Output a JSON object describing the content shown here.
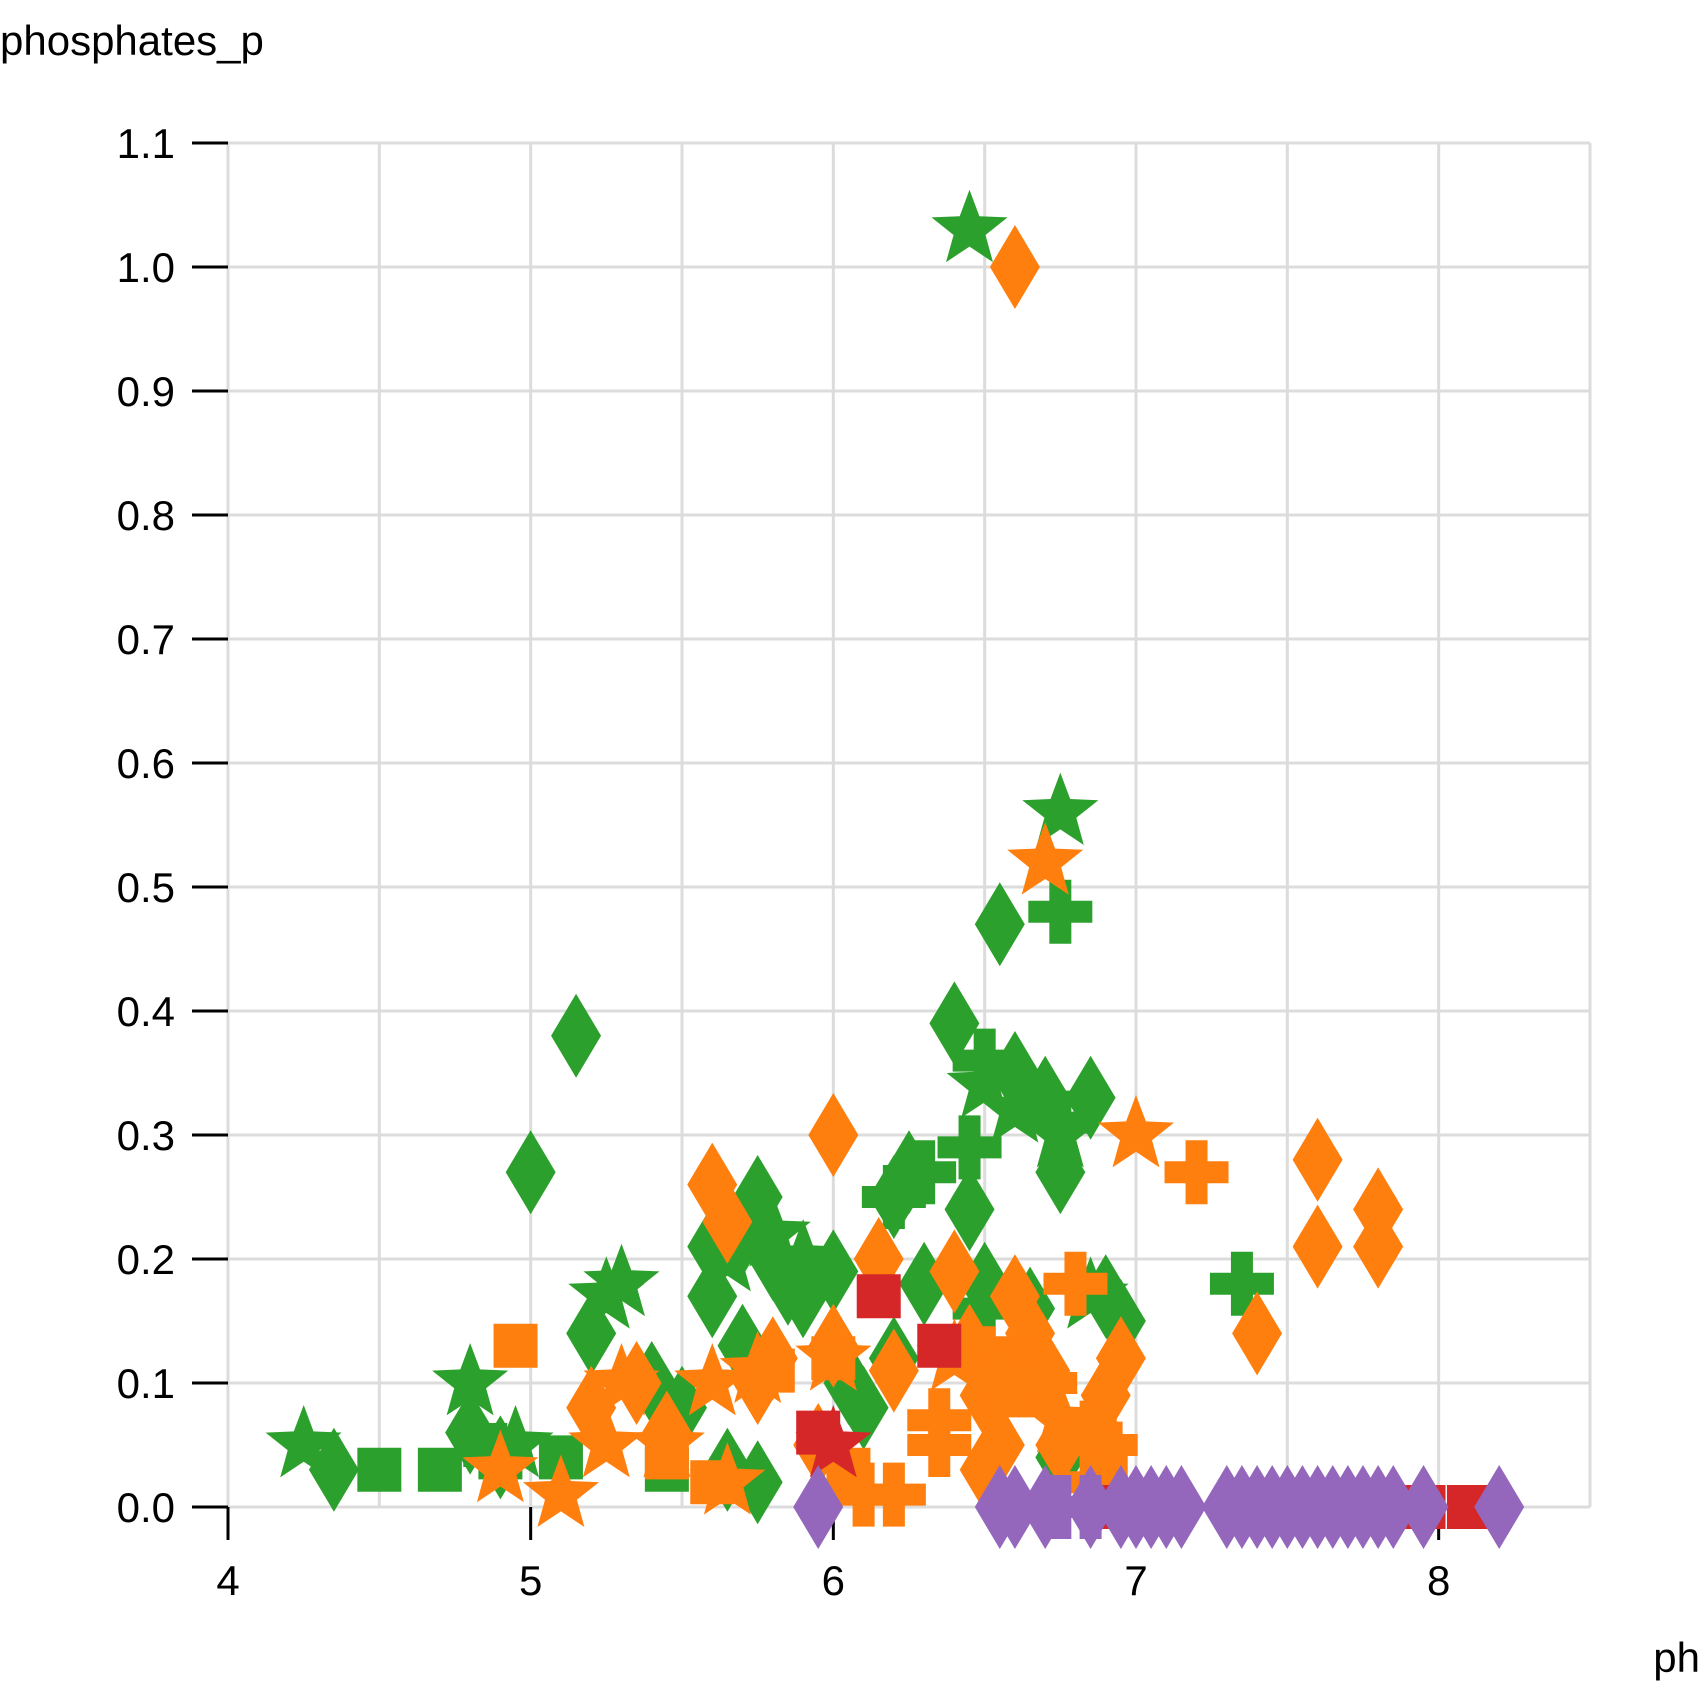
{
  "chart_data": {
    "type": "scatter",
    "xlabel": "ph",
    "ylabel": "phosphates_p",
    "xlim": [
      4,
      8.5
    ],
    "ylim": [
      0,
      1.1
    ],
    "x_ticks": [
      "4",
      "5",
      "6",
      "7",
      "8"
    ],
    "y_ticks": [
      "0.0",
      "0.1",
      "0.2",
      "0.3",
      "0.4",
      "0.5",
      "0.6",
      "0.7",
      "0.8",
      "0.9",
      "1.0",
      "1.1"
    ],
    "grid": true,
    "colors": {
      "green": "#2ca02c",
      "orange": "#ff7f0e",
      "red": "#d62728",
      "purple": "#9467bd"
    },
    "series": [
      {
        "color": "green",
        "marker": "star",
        "points": [
          [
            6.45,
            1.03
          ],
          [
            6.75,
            0.56
          ],
          [
            4.25,
            0.05
          ],
          [
            4.8,
            0.1
          ],
          [
            5.25,
            0.17
          ],
          [
            5.3,
            0.18
          ],
          [
            5.65,
            0.2
          ],
          [
            5.9,
            0.2
          ],
          [
            6.5,
            0.34
          ],
          [
            6.6,
            0.32
          ],
          [
            6.75,
            0.3
          ],
          [
            6.85,
            0.17
          ],
          [
            4.95,
            0.05
          ],
          [
            5.8,
            0.22
          ]
        ]
      },
      {
        "color": "green",
        "marker": "diamond",
        "points": [
          [
            5.15,
            0.38
          ],
          [
            5.0,
            0.27
          ],
          [
            4.35,
            0.03
          ],
          [
            4.8,
            0.06
          ],
          [
            4.9,
            0.04
          ],
          [
            5.2,
            0.14
          ],
          [
            5.4,
            0.1
          ],
          [
            5.5,
            0.08
          ],
          [
            5.6,
            0.21
          ],
          [
            5.7,
            0.22
          ],
          [
            5.75,
            0.25
          ],
          [
            5.8,
            0.2
          ],
          [
            5.85,
            0.18
          ],
          [
            5.9,
            0.17
          ],
          [
            6.0,
            0.19
          ],
          [
            6.05,
            0.1
          ],
          [
            6.1,
            0.08
          ],
          [
            6.2,
            0.12
          ],
          [
            6.2,
            0.25
          ],
          [
            6.25,
            0.27
          ],
          [
            6.3,
            0.18
          ],
          [
            6.4,
            0.39
          ],
          [
            6.45,
            0.24
          ],
          [
            6.5,
            0.18
          ],
          [
            6.55,
            0.47
          ],
          [
            6.6,
            0.35
          ],
          [
            6.7,
            0.33
          ],
          [
            6.75,
            0.27
          ],
          [
            6.85,
            0.33
          ],
          [
            6.9,
            0.17
          ],
          [
            6.95,
            0.15
          ],
          [
            5.7,
            0.13
          ],
          [
            5.65,
            0.03
          ],
          [
            5.75,
            0.02
          ],
          [
            6.75,
            0.04
          ],
          [
            5.6,
            0.17
          ],
          [
            6.65,
            0.16
          ]
        ]
      },
      {
        "color": "green",
        "marker": "square",
        "points": [
          [
            4.5,
            0.03
          ],
          [
            4.7,
            0.03
          ],
          [
            4.9,
            0.04
          ],
          [
            5.1,
            0.04
          ],
          [
            5.45,
            0.03
          ],
          [
            4.85,
            0.05
          ]
        ]
      },
      {
        "color": "green",
        "marker": "plus",
        "points": [
          [
            6.75,
            0.48
          ],
          [
            6.5,
            0.36
          ],
          [
            6.45,
            0.29
          ],
          [
            6.3,
            0.27
          ],
          [
            6.75,
            0.31
          ],
          [
            7.35,
            0.18
          ],
          [
            6.5,
            0.16
          ],
          [
            6.2,
            0.25
          ]
        ]
      },
      {
        "color": "orange",
        "marker": "star",
        "points": [
          [
            6.7,
            0.52
          ],
          [
            7.0,
            0.3
          ],
          [
            5.1,
            0.01
          ],
          [
            5.25,
            0.05
          ],
          [
            5.3,
            0.1
          ],
          [
            5.45,
            0.05
          ],
          [
            5.65,
            0.02
          ],
          [
            5.75,
            0.11
          ],
          [
            6.0,
            0.12
          ],
          [
            6.4,
            0.12
          ],
          [
            6.55,
            0.1
          ],
          [
            6.75,
            0.07
          ],
          [
            4.9,
            0.03
          ],
          [
            5.6,
            0.1
          ]
        ]
      },
      {
        "color": "orange",
        "marker": "diamond",
        "points": [
          [
            6.6,
            1.0
          ],
          [
            6.0,
            0.3
          ],
          [
            5.6,
            0.26
          ],
          [
            5.65,
            0.23
          ],
          [
            7.6,
            0.28
          ],
          [
            7.6,
            0.21
          ],
          [
            7.8,
            0.24
          ],
          [
            7.8,
            0.21
          ],
          [
            7.4,
            0.14
          ],
          [
            5.2,
            0.08
          ],
          [
            5.35,
            0.1
          ],
          [
            5.45,
            0.06
          ],
          [
            5.75,
            0.1
          ],
          [
            5.8,
            0.12
          ],
          [
            6.0,
            0.13
          ],
          [
            6.15,
            0.2
          ],
          [
            6.2,
            0.11
          ],
          [
            6.4,
            0.19
          ],
          [
            6.45,
            0.13
          ],
          [
            6.5,
            0.09
          ],
          [
            6.55,
            0.05
          ],
          [
            6.6,
            0.17
          ],
          [
            6.65,
            0.14
          ],
          [
            6.7,
            0.11
          ],
          [
            6.9,
            0.09
          ],
          [
            6.95,
            0.12
          ],
          [
            6.5,
            0.03
          ],
          [
            6.75,
            0.05
          ],
          [
            5.95,
            0.05
          ]
        ]
      },
      {
        "color": "orange",
        "marker": "square",
        "points": [
          [
            4.95,
            0.13
          ],
          [
            5.6,
            0.02
          ],
          [
            5.8,
            0.11
          ],
          [
            6.6,
            0.12
          ],
          [
            6.9,
            0.03
          ],
          [
            6.0,
            0.12
          ],
          [
            6.6,
            0.09
          ],
          [
            5.45,
            0.04
          ],
          [
            6.05,
            0.03
          ]
        ]
      },
      {
        "color": "orange",
        "marker": "plus",
        "points": [
          [
            7.2,
            0.27
          ],
          [
            6.8,
            0.18
          ],
          [
            6.35,
            0.07
          ],
          [
            6.35,
            0.05
          ],
          [
            6.5,
            0.12
          ],
          [
            6.7,
            0.1
          ],
          [
            6.85,
            0.06
          ],
          [
            6.9,
            0.05
          ],
          [
            6.1,
            0.01
          ],
          [
            6.2,
            0.01
          ],
          [
            6.55,
            0.1
          ],
          [
            6.85,
            0.02
          ]
        ]
      },
      {
        "color": "red",
        "marker": "square",
        "points": [
          [
            6.15,
            0.17
          ],
          [
            6.35,
            0.13
          ],
          [
            5.95,
            0.06
          ],
          [
            6.95,
            0.0
          ],
          [
            7.05,
            0.0
          ],
          [
            7.35,
            0.0
          ],
          [
            7.55,
            0.0
          ],
          [
            7.65,
            0.0
          ],
          [
            7.95,
            0.0
          ],
          [
            8.1,
            0.0
          ]
        ]
      },
      {
        "color": "red",
        "marker": "star",
        "points": [
          [
            6.0,
            0.05
          ]
        ]
      },
      {
        "color": "purple",
        "marker": "diamond",
        "points": [
          [
            5.95,
            0.0
          ],
          [
            6.55,
            0.0
          ],
          [
            6.6,
            0.0
          ],
          [
            6.7,
            0.0
          ],
          [
            6.85,
            0.0
          ],
          [
            6.95,
            0.0
          ],
          [
            7.0,
            0.0
          ],
          [
            7.05,
            0.0
          ],
          [
            7.1,
            0.0
          ],
          [
            7.15,
            0.0
          ],
          [
            7.3,
            0.0
          ],
          [
            7.35,
            0.0
          ],
          [
            7.4,
            0.0
          ],
          [
            7.45,
            0.0
          ],
          [
            7.5,
            0.0
          ],
          [
            7.55,
            0.0
          ],
          [
            7.6,
            0.0
          ],
          [
            7.65,
            0.0
          ],
          [
            7.7,
            0.0
          ],
          [
            7.75,
            0.0
          ],
          [
            7.8,
            0.0
          ],
          [
            7.85,
            0.0
          ],
          [
            7.95,
            0.0
          ],
          [
            8.2,
            0.0
          ]
        ]
      },
      {
        "color": "purple",
        "marker": "plus",
        "points": [
          [
            6.75,
            0.0
          ],
          [
            6.85,
            0.0
          ]
        ]
      }
    ]
  }
}
